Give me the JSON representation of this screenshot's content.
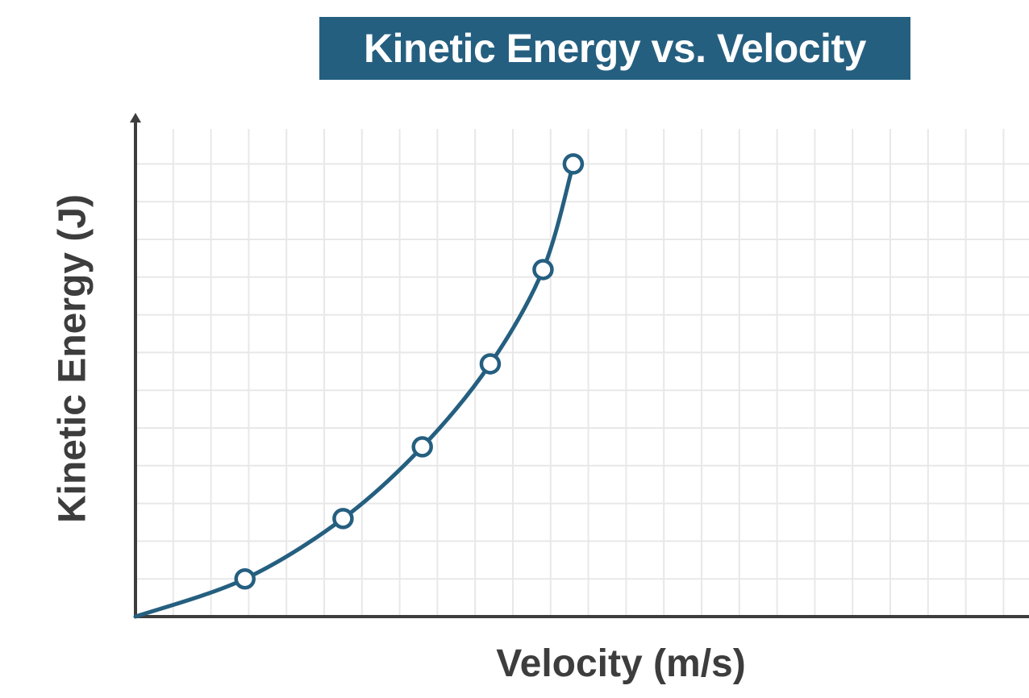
{
  "chart_data": {
    "type": "line",
    "title": "Kinetic Energy vs. Velocity",
    "xlabel": "Velocity (m/s)",
    "ylabel": "Kinetic Energy (J)",
    "xlim": [
      0,
      23
    ],
    "ylim": [
      0,
      13
    ],
    "grid": true,
    "legend": "none",
    "line_color": "#255f80",
    "axis_color": "#3d3d3d",
    "grid_color": "#e8e8e8",
    "series": [
      {
        "x": [
          0,
          2.9,
          5.5,
          7.6,
          9.4,
          10.8,
          11.6
        ],
        "y": [
          0,
          1.0,
          2.6,
          4.5,
          6.7,
          9.2,
          12.0
        ],
        "markers": [
          false,
          true,
          true,
          true,
          true,
          true,
          true
        ]
      }
    ]
  }
}
